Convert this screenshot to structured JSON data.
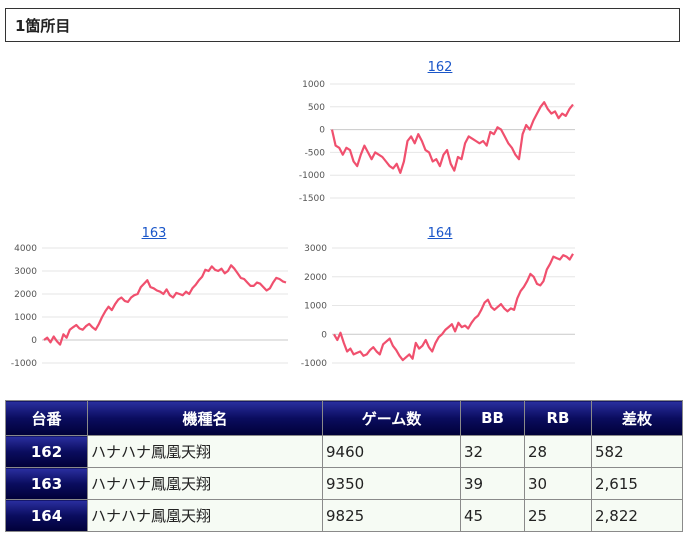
{
  "heading": "1箇所目",
  "series_color": "#f0506e",
  "chart_data": [
    {
      "type": "line",
      "title": "162",
      "ylim": [
        -1500,
        1000
      ],
      "yticks": [
        1000,
        500,
        0,
        -500,
        -1000,
        -1500
      ],
      "series": [
        {
          "values": [
            0,
            -350,
            -400,
            -550,
            -400,
            -450,
            -700,
            -800,
            -550,
            -350,
            -500,
            -650,
            -500,
            -550,
            -600,
            -700,
            -800,
            -850,
            -750,
            -950,
            -700,
            -250,
            -150,
            -300,
            -100,
            -250,
            -450,
            -500,
            -700,
            -650,
            -800,
            -550,
            -450,
            -750,
            -900,
            -600,
            -650,
            -300,
            -150,
            -200,
            -250,
            -300,
            -250,
            -350,
            -50,
            -100,
            50,
            0,
            -150,
            -300,
            -400,
            -550,
            -650,
            -100,
            100,
            0,
            200,
            350,
            500,
            600,
            450,
            350,
            400,
            250,
            350,
            300,
            450,
            550
          ]
        }
      ]
    },
    {
      "type": "line",
      "title": "163",
      "ylim": [
        -1000,
        4000
      ],
      "yticks": [
        4000,
        3000,
        2000,
        1000,
        0,
        -1000
      ],
      "series": [
        {
          "values": [
            0,
            100,
            -100,
            150,
            -50,
            -200,
            250,
            100,
            450,
            550,
            650,
            500,
            450,
            600,
            700,
            550,
            450,
            700,
            1000,
            1250,
            1450,
            1300,
            1550,
            1750,
            1850,
            1700,
            1650,
            1850,
            1950,
            2000,
            2300,
            2450,
            2600,
            2300,
            2250,
            2150,
            2100,
            2000,
            2200,
            1950,
            1850,
            2050,
            2000,
            1950,
            2100,
            2000,
            2250,
            2400,
            2600,
            2750,
            3050,
            3000,
            3200,
            3050,
            3000,
            3100,
            2900,
            3000,
            3250,
            3100,
            2900,
            2700,
            2650,
            2500,
            2350,
            2350,
            2500,
            2450,
            2300,
            2150,
            2250,
            2500,
            2700,
            2650,
            2550,
            2500
          ]
        }
      ]
    },
    {
      "type": "line",
      "title": "164",
      "ylim": [
        -1000,
        3000
      ],
      "yticks": [
        3000,
        2000,
        1000,
        0,
        -1000
      ],
      "series": [
        {
          "values": [
            0,
            -200,
            50,
            -300,
            -600,
            -500,
            -700,
            -650,
            -600,
            -750,
            -700,
            -550,
            -450,
            -600,
            -700,
            -350,
            -250,
            -150,
            -400,
            -550,
            -750,
            -900,
            -800,
            -700,
            -850,
            -300,
            -500,
            -400,
            -200,
            -450,
            -600,
            -300,
            -100,
            0,
            150,
            250,
            350,
            100,
            400,
            250,
            300,
            200,
            400,
            550,
            650,
            850,
            1100,
            1200,
            950,
            850,
            950,
            1050,
            900,
            800,
            900,
            850,
            1250,
            1500,
            1650,
            1850,
            2100,
            2000,
            1750,
            1700,
            1850,
            2250,
            2450,
            2700,
            2650,
            2600,
            2750,
            2700,
            2600,
            2800
          ]
        }
      ]
    }
  ],
  "table": {
    "headers": [
      "台番",
      "機種名",
      "ゲーム数",
      "BB",
      "RB",
      "差枚"
    ],
    "rows": [
      [
        "162",
        "ハナハナ鳳凰天翔",
        "9460",
        "32",
        "28",
        "582"
      ],
      [
        "163",
        "ハナハナ鳳凰天翔",
        "9350",
        "39",
        "30",
        "2,615"
      ],
      [
        "164",
        "ハナハナ鳳凰天翔",
        "9825",
        "45",
        "25",
        "2,822"
      ]
    ]
  }
}
